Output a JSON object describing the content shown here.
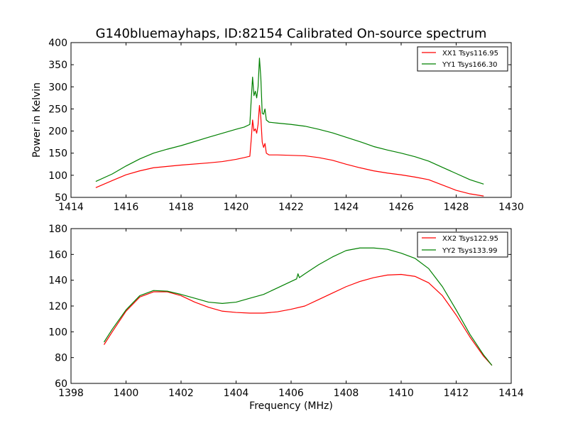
{
  "chart_data": [
    {
      "type": "line",
      "title": "G140bluemayhaps, ID:82154 Calibrated On-source spectrum",
      "xlabel": "",
      "ylabel": "Power in Kelvin",
      "xlim": [
        1414,
        1430
      ],
      "ylim": [
        50,
        400
      ],
      "xticks": [
        1414,
        1416,
        1418,
        1420,
        1422,
        1424,
        1426,
        1428,
        1430
      ],
      "yticks": [
        50,
        100,
        150,
        200,
        250,
        300,
        350,
        400
      ],
      "legend": "top-right",
      "series": [
        {
          "name": "XX1 Tsys116.95",
          "color": "#ff0000",
          "points": [
            [
              1414.9,
              72
            ],
            [
              1415.5,
              88
            ],
            [
              1416.0,
              101
            ],
            [
              1416.5,
              110
            ],
            [
              1417.0,
              117
            ],
            [
              1417.5,
              120
            ],
            [
              1418.0,
              123
            ],
            [
              1419.0,
              128
            ],
            [
              1419.5,
              131
            ],
            [
              1420.0,
              136
            ],
            [
              1420.3,
              140
            ],
            [
              1420.5,
              143
            ],
            [
              1420.55,
              180
            ],
            [
              1420.6,
              225
            ],
            [
              1420.65,
              200
            ],
            [
              1420.7,
              205
            ],
            [
              1420.75,
              195
            ],
            [
              1420.8,
              215
            ],
            [
              1420.85,
              258
            ],
            [
              1420.9,
              230
            ],
            [
              1420.95,
              175
            ],
            [
              1421.0,
              163
            ],
            [
              1421.05,
              172
            ],
            [
              1421.1,
              150
            ],
            [
              1421.2,
              146
            ],
            [
              1421.5,
              146
            ],
            [
              1422.0,
              145
            ],
            [
              1422.5,
              144
            ],
            [
              1423.0,
              140
            ],
            [
              1423.5,
              134
            ],
            [
              1424.0,
              125
            ],
            [
              1424.5,
              117
            ],
            [
              1425.0,
              110
            ],
            [
              1425.5,
              105
            ],
            [
              1426.0,
              101
            ],
            [
              1426.5,
              96
            ],
            [
              1427.0,
              90
            ],
            [
              1427.5,
              78
            ],
            [
              1428.0,
              66
            ],
            [
              1428.5,
              58
            ],
            [
              1429.0,
              53
            ]
          ]
        },
        {
          "name": "YY1 Tsys166.30",
          "color": "#008000",
          "points": [
            [
              1414.9,
              86
            ],
            [
              1415.5,
              103
            ],
            [
              1416.0,
              121
            ],
            [
              1416.5,
              137
            ],
            [
              1417.0,
              150
            ],
            [
              1417.5,
              159
            ],
            [
              1418.0,
              167
            ],
            [
              1419.0,
              186
            ],
            [
              1419.5,
              195
            ],
            [
              1420.0,
              204
            ],
            [
              1420.3,
              209
            ],
            [
              1420.5,
              215
            ],
            [
              1420.55,
              270
            ],
            [
              1420.6,
              322
            ],
            [
              1420.65,
              280
            ],
            [
              1420.7,
              290
            ],
            [
              1420.75,
              275
            ],
            [
              1420.8,
              300
            ],
            [
              1420.85,
              365
            ],
            [
              1420.9,
              320
            ],
            [
              1420.95,
              240
            ],
            [
              1421.0,
              238
            ],
            [
              1421.05,
              250
            ],
            [
              1421.1,
              225
            ],
            [
              1421.2,
              220
            ],
            [
              1421.5,
              218
            ],
            [
              1422.0,
              215
            ],
            [
              1422.5,
              211
            ],
            [
              1423.0,
              204
            ],
            [
              1423.5,
              196
            ],
            [
              1424.0,
              186
            ],
            [
              1424.5,
              176
            ],
            [
              1425.0,
              165
            ],
            [
              1425.5,
              157
            ],
            [
              1426.0,
              150
            ],
            [
              1426.5,
              142
            ],
            [
              1427.0,
              132
            ],
            [
              1427.5,
              118
            ],
            [
              1428.0,
              104
            ],
            [
              1428.5,
              90
            ],
            [
              1429.0,
              80
            ]
          ]
        }
      ]
    },
    {
      "type": "line",
      "title": "",
      "xlabel": "Frequency (MHz)",
      "ylabel": "",
      "xlim": [
        1398,
        1414
      ],
      "ylim": [
        60,
        180
      ],
      "xticks": [
        1398,
        1400,
        1402,
        1404,
        1406,
        1408,
        1410,
        1412,
        1414
      ],
      "yticks": [
        60,
        80,
        100,
        120,
        140,
        160,
        180
      ],
      "legend": "top-right",
      "series": [
        {
          "name": "XX2 Tsys122.95",
          "color": "#ff0000",
          "points": [
            [
              1399.2,
              90
            ],
            [
              1399.5,
              100
            ],
            [
              1400.0,
              116
            ],
            [
              1400.5,
              127
            ],
            [
              1401.0,
              131
            ],
            [
              1401.5,
              131
            ],
            [
              1402.0,
              128
            ],
            [
              1402.5,
              123
            ],
            [
              1403.0,
              119
            ],
            [
              1403.5,
              116
            ],
            [
              1404.0,
              115
            ],
            [
              1404.5,
              114.5
            ],
            [
              1405.0,
              114.5
            ],
            [
              1405.5,
              115.5
            ],
            [
              1406.0,
              117.5
            ],
            [
              1406.5,
              120
            ],
            [
              1407.0,
              125
            ],
            [
              1407.5,
              130
            ],
            [
              1408.0,
              135
            ],
            [
              1408.5,
              139
            ],
            [
              1409.0,
              142
            ],
            [
              1409.5,
              144
            ],
            [
              1410.0,
              144.5
            ],
            [
              1410.5,
              143
            ],
            [
              1411.0,
              138
            ],
            [
              1411.5,
              128
            ],
            [
              1412.0,
              113
            ],
            [
              1412.5,
              96
            ],
            [
              1413.0,
              81
            ],
            [
              1413.3,
              74
            ]
          ]
        },
        {
          "name": "YY2 Tsys133.99",
          "color": "#008000",
          "points": [
            [
              1399.2,
              92
            ],
            [
              1399.5,
              102
            ],
            [
              1400.0,
              117
            ],
            [
              1400.5,
              128
            ],
            [
              1401.0,
              132
            ],
            [
              1401.5,
              131.5
            ],
            [
              1402.0,
              129
            ],
            [
              1402.5,
              126
            ],
            [
              1403.0,
              123
            ],
            [
              1403.5,
              122
            ],
            [
              1404.0,
              123
            ],
            [
              1404.5,
              126
            ],
            [
              1405.0,
              129
            ],
            [
              1405.5,
              134
            ],
            [
              1406.0,
              139
            ],
            [
              1406.2,
              141
            ],
            [
              1406.25,
              145
            ],
            [
              1406.3,
              142
            ],
            [
              1406.5,
              145
            ],
            [
              1407.0,
              152
            ],
            [
              1407.5,
              158
            ],
            [
              1408.0,
              163
            ],
            [
              1408.5,
              165
            ],
            [
              1409.0,
              165
            ],
            [
              1409.5,
              164
            ],
            [
              1410.0,
              161
            ],
            [
              1410.5,
              157
            ],
            [
              1411.0,
              149
            ],
            [
              1411.5,
              135
            ],
            [
              1412.0,
              117
            ],
            [
              1412.5,
              98
            ],
            [
              1413.0,
              82
            ],
            [
              1413.3,
              74
            ]
          ]
        }
      ]
    }
  ]
}
